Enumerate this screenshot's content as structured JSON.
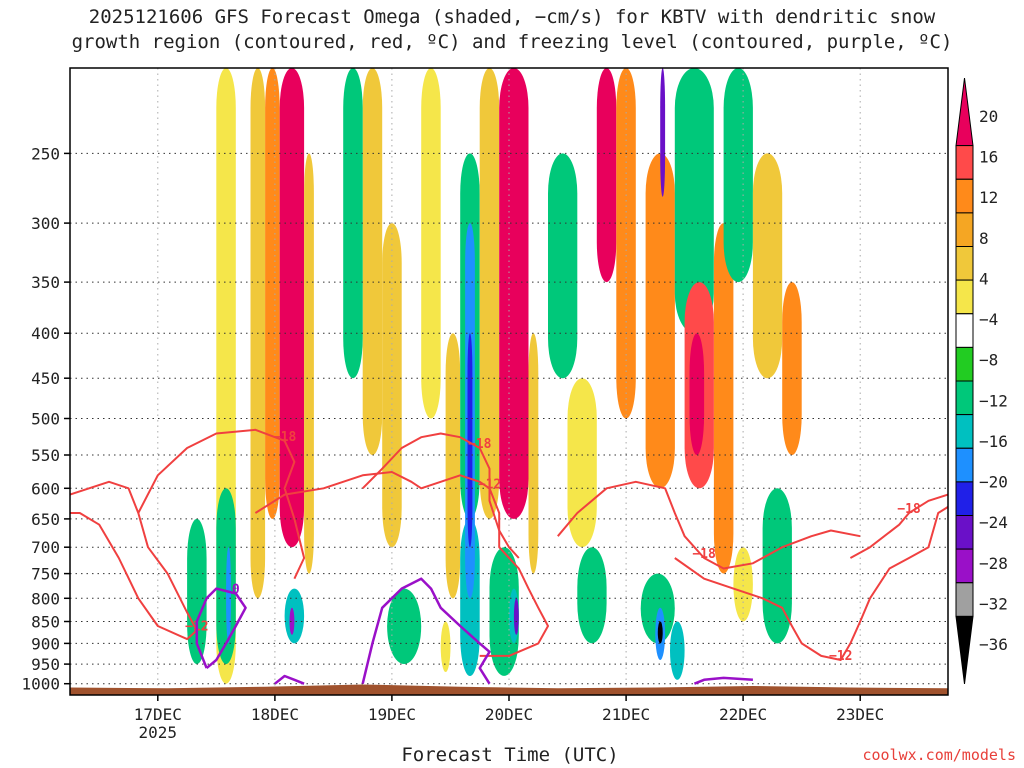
{
  "title_line1": "2025121606 GFS Forecast Omega (shaded, −cm/s) for KBTV with dendritic snow",
  "title_line2": "growth region (contoured, red, ºC) and freezing level (contoured, purple, ºC)",
  "chart_data": {
    "type": "heatmap",
    "xlabel": "Forecast Time (UTC)",
    "ylabel": "",
    "y_axis": {
      "scale": "log-pressure",
      "direction": "inverted",
      "ylim": [
        1030,
        200
      ],
      "ticks": [
        250,
        300,
        350,
        400,
        450,
        500,
        550,
        600,
        650,
        700,
        750,
        800,
        850,
        900,
        950,
        1000
      ],
      "tick_labels": [
        "250",
        "300",
        "350",
        "400",
        "450",
        "500",
        "550",
        "600",
        "650",
        "700",
        "750",
        "800",
        "850",
        "900",
        "950",
        "1000"
      ]
    },
    "x_axis": {
      "xlim": [
        "2025-12-16T06",
        "2025-12-23T18"
      ],
      "ticks": [
        {
          "time": "2025-12-17T00",
          "label": "17DEC",
          "sublabel": "2025"
        },
        {
          "time": "2025-12-18T00",
          "label": "18DEC",
          "sublabel": ""
        },
        {
          "time": "2025-12-19T00",
          "label": "19DEC",
          "sublabel": ""
        },
        {
          "time": "2025-12-20T00",
          "label": "20DEC",
          "sublabel": ""
        },
        {
          "time": "2025-12-21T00",
          "label": "21DEC",
          "sublabel": ""
        },
        {
          "time": "2025-12-22T00",
          "label": "22DEC",
          "sublabel": ""
        },
        {
          "time": "2025-12-23T00",
          "label": "23DEC",
          "sublabel": ""
        }
      ]
    },
    "grid": "dotted",
    "colorbar": {
      "placement": "right",
      "labels": [
        "20",
        "16",
        "12",
        "8",
        "4",
        "−4",
        "−8",
        "−12",
        "−16",
        "−20",
        "−24",
        "−28",
        "−32",
        "−36"
      ],
      "colors": [
        "#e8005c",
        "#ff4a4a",
        "#ff8a1a",
        "#f5a623",
        "#f0c83a",
        "#f5e64a",
        "#ffffff",
        "#22cc22",
        "#00c87a",
        "#00c0c0",
        "#1e90ff",
        "#2020e8",
        "#6a10c8",
        "#9a10c8",
        "#a0a0a0",
        "#000000"
      ]
    },
    "omega_features": [
      {
        "t0": 30,
        "t1": 34,
        "p0": 200,
        "p1": 1000,
        "value": 4
      },
      {
        "t0": 37,
        "t1": 40,
        "p0": 200,
        "p1": 800,
        "value": 8
      },
      {
        "t0": 40,
        "t1": 43,
        "p0": 200,
        "p1": 650,
        "value": 12
      },
      {
        "t0": 43,
        "t1": 48,
        "p0": 200,
        "p1": 700,
        "value": 20
      },
      {
        "t0": 48,
        "t1": 50,
        "p0": 250,
        "p1": 750,
        "value": 8
      },
      {
        "t0": 24,
        "t1": 28,
        "p0": 650,
        "p1": 950,
        "value": -8
      },
      {
        "t0": 30,
        "t1": 34,
        "p0": 600,
        "p1": 950,
        "value": -8
      },
      {
        "t0": 32,
        "t1": 33,
        "p0": 700,
        "p1": 900,
        "value": -16
      },
      {
        "t0": 44,
        "t1": 48,
        "p0": 780,
        "p1": 900,
        "value": -12
      },
      {
        "t0": 45,
        "t1": 46,
        "p0": 820,
        "p1": 880,
        "value": -28
      },
      {
        "t0": 60,
        "t1": 64,
        "p0": 200,
        "p1": 550,
        "value": 8
      },
      {
        "t0": 64,
        "t1": 68,
        "p0": 300,
        "p1": 700,
        "value": 8
      },
      {
        "t0": 72,
        "t1": 76,
        "p0": 200,
        "p1": 500,
        "value": 4
      },
      {
        "t0": 77,
        "t1": 80,
        "p0": 400,
        "p1": 800,
        "value": 8
      },
      {
        "t0": 56,
        "t1": 60,
        "p0": 200,
        "p1": 450,
        "value": -8
      },
      {
        "t0": 65,
        "t1": 72,
        "p0": 780,
        "p1": 950,
        "value": -8
      },
      {
        "t0": 76,
        "t1": 78,
        "p0": 850,
        "p1": 970,
        "value": 4
      },
      {
        "t0": 80,
        "t1": 84,
        "p0": 250,
        "p1": 650,
        "value": -8
      },
      {
        "t0": 80,
        "t1": 84,
        "p0": 650,
        "p1": 980,
        "value": -12
      },
      {
        "t0": 81,
        "t1": 83,
        "p0": 300,
        "p1": 800,
        "value": -16
      },
      {
        "t0": 81.5,
        "t1": 82.5,
        "p0": 400,
        "p1": 700,
        "value": -20
      },
      {
        "t0": 84,
        "t1": 88,
        "p0": 200,
        "p1": 650,
        "value": 8
      },
      {
        "t0": 88,
        "t1": 94,
        "p0": 200,
        "p1": 650,
        "value": 20
      },
      {
        "t0": 86,
        "t1": 92,
        "p0": 700,
        "p1": 980,
        "value": -8
      },
      {
        "t0": 90,
        "t1": 92,
        "p0": 780,
        "p1": 900,
        "value": -12
      },
      {
        "t0": 91,
        "t1": 92,
        "p0": 800,
        "p1": 880,
        "value": -24
      },
      {
        "t0": 94,
        "t1": 96,
        "p0": 400,
        "p1": 750,
        "value": 8
      },
      {
        "t0": 98,
        "t1": 104,
        "p0": 250,
        "p1": 450,
        "value": -8
      },
      {
        "t0": 102,
        "t1": 108,
        "p0": 450,
        "p1": 700,
        "value": 4
      },
      {
        "t0": 104,
        "t1": 110,
        "p0": 700,
        "p1": 900,
        "value": -8
      },
      {
        "t0": 108,
        "t1": 112,
        "p0": 200,
        "p1": 350,
        "value": 20
      },
      {
        "t0": 112,
        "t1": 116,
        "p0": 200,
        "p1": 500,
        "value": 12
      },
      {
        "t0": 118,
        "t1": 124,
        "p0": 250,
        "p1": 600,
        "value": 12
      },
      {
        "t0": 117,
        "t1": 124,
        "p0": 750,
        "p1": 900,
        "value": -8
      },
      {
        "t0": 120,
        "t1": 122,
        "p0": 820,
        "p1": 940,
        "value": -16
      },
      {
        "t0": 120.5,
        "t1": 121.5,
        "p0": 850,
        "p1": 900,
        "value": -36
      },
      {
        "t0": 121,
        "t1": 122,
        "p0": 200,
        "p1": 280,
        "value": -24
      },
      {
        "t0": 123,
        "t1": 126,
        "p0": 850,
        "p1": 990,
        "value": -12
      },
      {
        "t0": 124,
        "t1": 132,
        "p0": 200,
        "p1": 400,
        "value": -8
      },
      {
        "t0": 126,
        "t1": 132,
        "p0": 350,
        "p1": 600,
        "value": 16
      },
      {
        "t0": 127,
        "t1": 130,
        "p0": 400,
        "p1": 550,
        "value": 20
      },
      {
        "t0": 132,
        "t1": 136,
        "p0": 300,
        "p1": 750,
        "value": 12
      },
      {
        "t0": 136,
        "t1": 140,
        "p0": 700,
        "p1": 850,
        "value": 4
      },
      {
        "t0": 134,
        "t1": 140,
        "p0": 200,
        "p1": 350,
        "value": -8
      },
      {
        "t0": 140,
        "t1": 146,
        "p0": 250,
        "p1": 450,
        "value": 8
      },
      {
        "t0": 146,
        "t1": 150,
        "p0": 350,
        "p1": 550,
        "value": 12
      },
      {
        "t0": 142,
        "t1": 148,
        "p0": 600,
        "p1": 900,
        "value": -8
      }
    ],
    "dgz_contours": [
      {
        "label": "−12",
        "points": [
          [
            0,
            610
          ],
          [
            8,
            590
          ],
          [
            12,
            600
          ],
          [
            14,
            640
          ],
          [
            16,
            700
          ],
          [
            20,
            750
          ],
          [
            24,
            830
          ],
          [
            26,
            870
          ],
          [
            24,
            890
          ],
          [
            18,
            860
          ],
          [
            14,
            800
          ],
          [
            10,
            720
          ],
          [
            6,
            660
          ],
          [
            2,
            640
          ],
          [
            0,
            640
          ]
        ]
      },
      {
        "label": "−18",
        "points": [
          [
            14,
            640
          ],
          [
            18,
            580
          ],
          [
            24,
            540
          ],
          [
            30,
            520
          ],
          [
            38,
            515
          ],
          [
            44,
            530
          ],
          [
            46,
            560
          ],
          [
            44,
            600
          ],
          [
            46,
            650
          ],
          [
            48,
            720
          ],
          [
            46,
            760
          ]
        ]
      },
      {
        "label": "−12",
        "points": [
          [
            38,
            640
          ],
          [
            44,
            610
          ],
          [
            52,
            600
          ],
          [
            60,
            580
          ],
          [
            66,
            575
          ],
          [
            70,
            590
          ],
          [
            72,
            600
          ],
          [
            76,
            590
          ],
          [
            80,
            580
          ],
          [
            84,
            590
          ],
          [
            86,
            600
          ],
          [
            88,
            640
          ],
          [
            88,
            700
          ],
          [
            92,
            740
          ],
          [
            94,
            780
          ],
          [
            96,
            820
          ],
          [
            98,
            860
          ],
          [
            96,
            900
          ],
          [
            90,
            930
          ],
          [
            84,
            930
          ]
        ]
      },
      {
        "label": "−18",
        "points": [
          [
            60,
            600
          ],
          [
            64,
            570
          ],
          [
            68,
            540
          ],
          [
            72,
            525
          ],
          [
            76,
            520
          ],
          [
            80,
            525
          ],
          [
            84,
            540
          ],
          [
            86,
            570
          ],
          [
            86,
            620
          ],
          [
            88,
            670
          ],
          [
            90,
            700
          ],
          [
            92,
            720
          ]
        ]
      },
      {
        "label": "−18",
        "points": [
          [
            100,
            680
          ],
          [
            104,
            640
          ],
          [
            110,
            600
          ],
          [
            116,
            590
          ],
          [
            122,
            600
          ],
          [
            124,
            640
          ],
          [
            126,
            680
          ],
          [
            130,
            720
          ],
          [
            134,
            740
          ],
          [
            140,
            730
          ],
          [
            146,
            700
          ],
          [
            152,
            680
          ],
          [
            156,
            670
          ],
          [
            162,
            680
          ]
        ]
      },
      {
        "label": "−12",
        "points": [
          [
            124,
            720
          ],
          [
            130,
            760
          ],
          [
            136,
            780
          ],
          [
            142,
            800
          ],
          [
            146,
            820
          ],
          [
            148,
            860
          ],
          [
            150,
            900
          ],
          [
            154,
            930
          ],
          [
            158,
            940
          ],
          [
            160,
            900
          ],
          [
            162,
            850
          ],
          [
            164,
            800
          ],
          [
            168,
            740
          ],
          [
            172,
            720
          ],
          [
            176,
            700
          ],
          [
            178,
            640
          ],
          [
            180,
            630
          ]
        ]
      },
      {
        "label": "−18",
        "points": [
          [
            160,
            720
          ],
          [
            164,
            700
          ],
          [
            170,
            660
          ],
          [
            172,
            640
          ],
          [
            176,
            620
          ],
          [
            180,
            610
          ]
        ]
      }
    ],
    "freezing_contours": [
      {
        "label": "0",
        "points": [
          [
            28,
            960
          ],
          [
            26,
            900
          ],
          [
            26,
            850
          ],
          [
            28,
            800
          ],
          [
            30,
            780
          ],
          [
            34,
            790
          ],
          [
            36,
            820
          ],
          [
            34,
            860
          ],
          [
            32,
            900
          ],
          [
            30,
            940
          ],
          [
            28,
            960
          ]
        ]
      },
      {
        "label": "",
        "points": [
          [
            42,
            1000
          ],
          [
            44,
            980
          ],
          [
            46,
            990
          ],
          [
            48,
            1000
          ]
        ]
      },
      {
        "label": "",
        "points": [
          [
            60,
            1000
          ],
          [
            62,
            900
          ],
          [
            64,
            820
          ],
          [
            68,
            780
          ],
          [
            72,
            760
          ],
          [
            74,
            780
          ],
          [
            76,
            820
          ],
          [
            80,
            860
          ],
          [
            84,
            900
          ],
          [
            86,
            920
          ],
          [
            84,
            960
          ],
          [
            86,
            1000
          ]
        ]
      },
      {
        "label": "",
        "points": [
          [
            128,
            1000
          ],
          [
            130,
            990
          ],
          [
            134,
            985
          ],
          [
            140,
            990
          ]
        ]
      }
    ],
    "terrain": {
      "surface_pressure": [
        1010,
        1012,
        1008,
        1002,
        1008,
        1012,
        1010,
        1006,
        1010,
        1012
      ]
    }
  },
  "credit": "coolwx.com/models"
}
